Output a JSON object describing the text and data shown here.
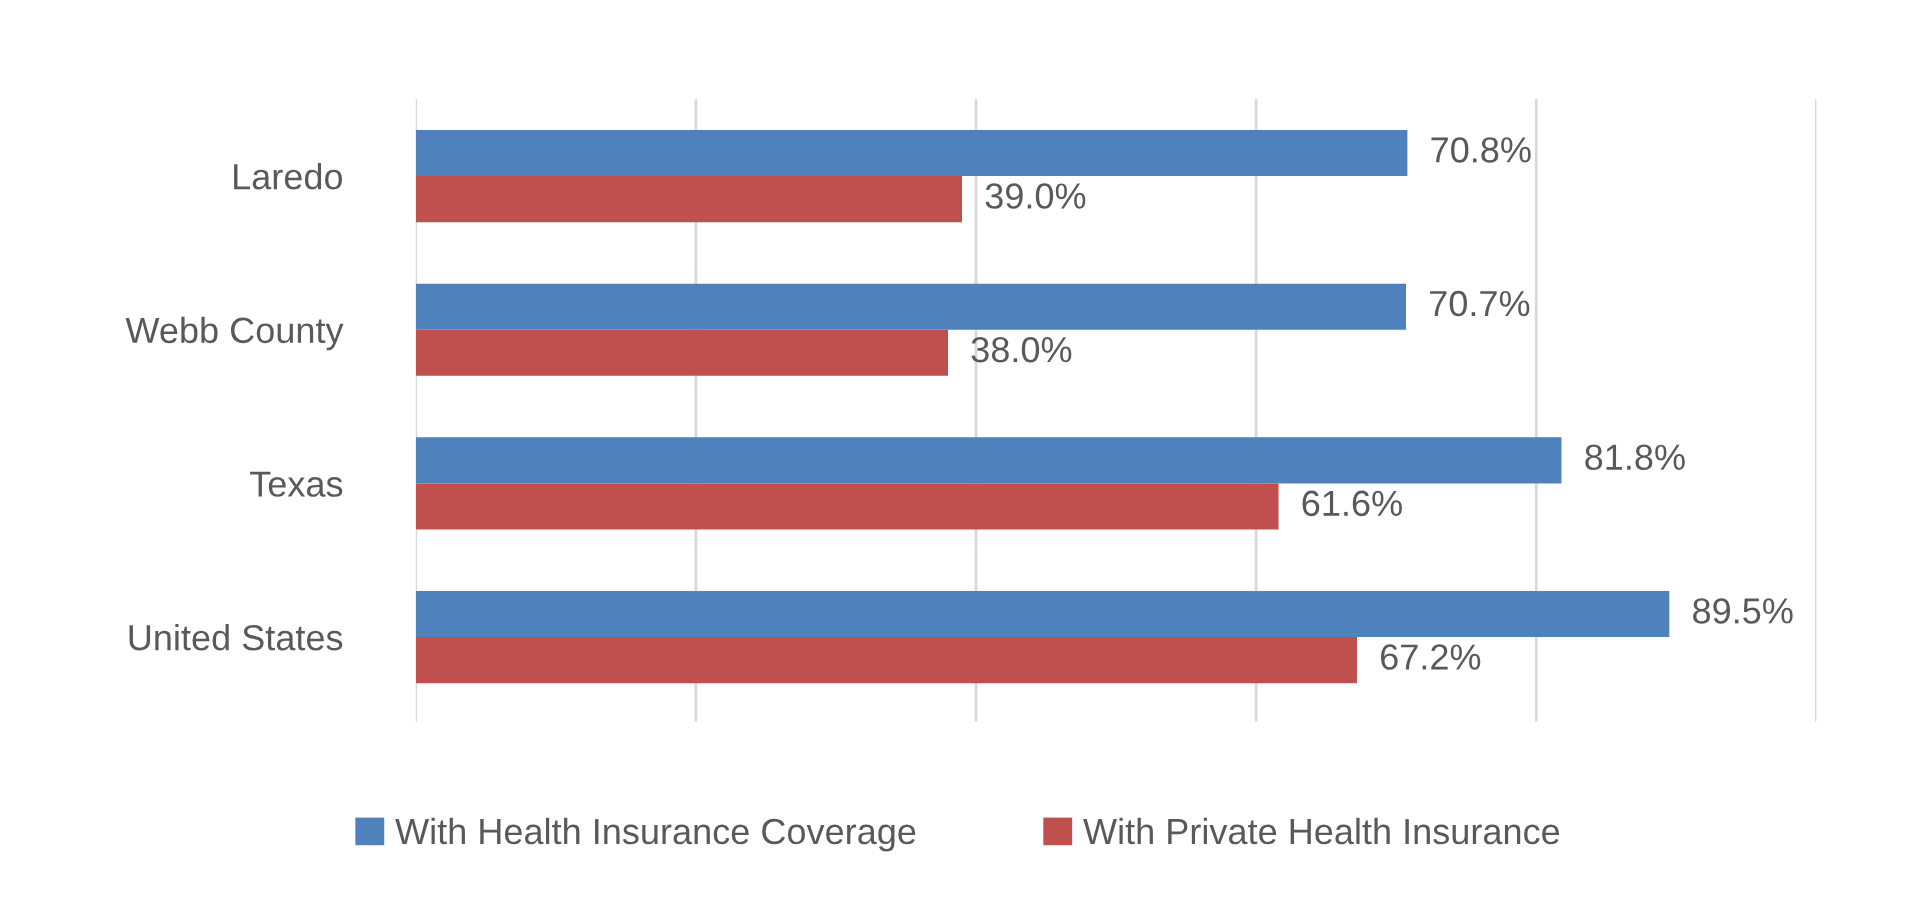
{
  "chart_data": {
    "type": "bar",
    "orientation": "horizontal",
    "categories": [
      "Laredo",
      "Webb County",
      "Texas",
      "United States"
    ],
    "series": [
      {
        "name": "With Health Insurance Coverage",
        "color": "#4f81bd",
        "values": [
          70.8,
          70.7,
          81.8,
          89.5
        ],
        "value_labels": [
          "70.8%",
          "70.7%",
          "81.8%",
          "89.5%"
        ]
      },
      {
        "name": "With Private Health Insurance",
        "color": "#c0504d",
        "values": [
          39.0,
          38.0,
          61.6,
          67.2
        ],
        "value_labels": [
          "39.0%",
          "38.0%",
          "61.6%",
          "67.2%"
        ]
      }
    ],
    "xlim": [
      0,
      100
    ],
    "xticks": [
      {
        "value": 0,
        "label": null
      },
      {
        "value": 20,
        "label": null
      },
      {
        "value": 40,
        "label": null
      },
      {
        "value": 60,
        "label": null
      },
      {
        "value": 80,
        "label": null
      },
      {
        "value": 100,
        "label": null
      }
    ],
    "grid": "x",
    "legend": "bottom",
    "tick_labels": "y"
  }
}
